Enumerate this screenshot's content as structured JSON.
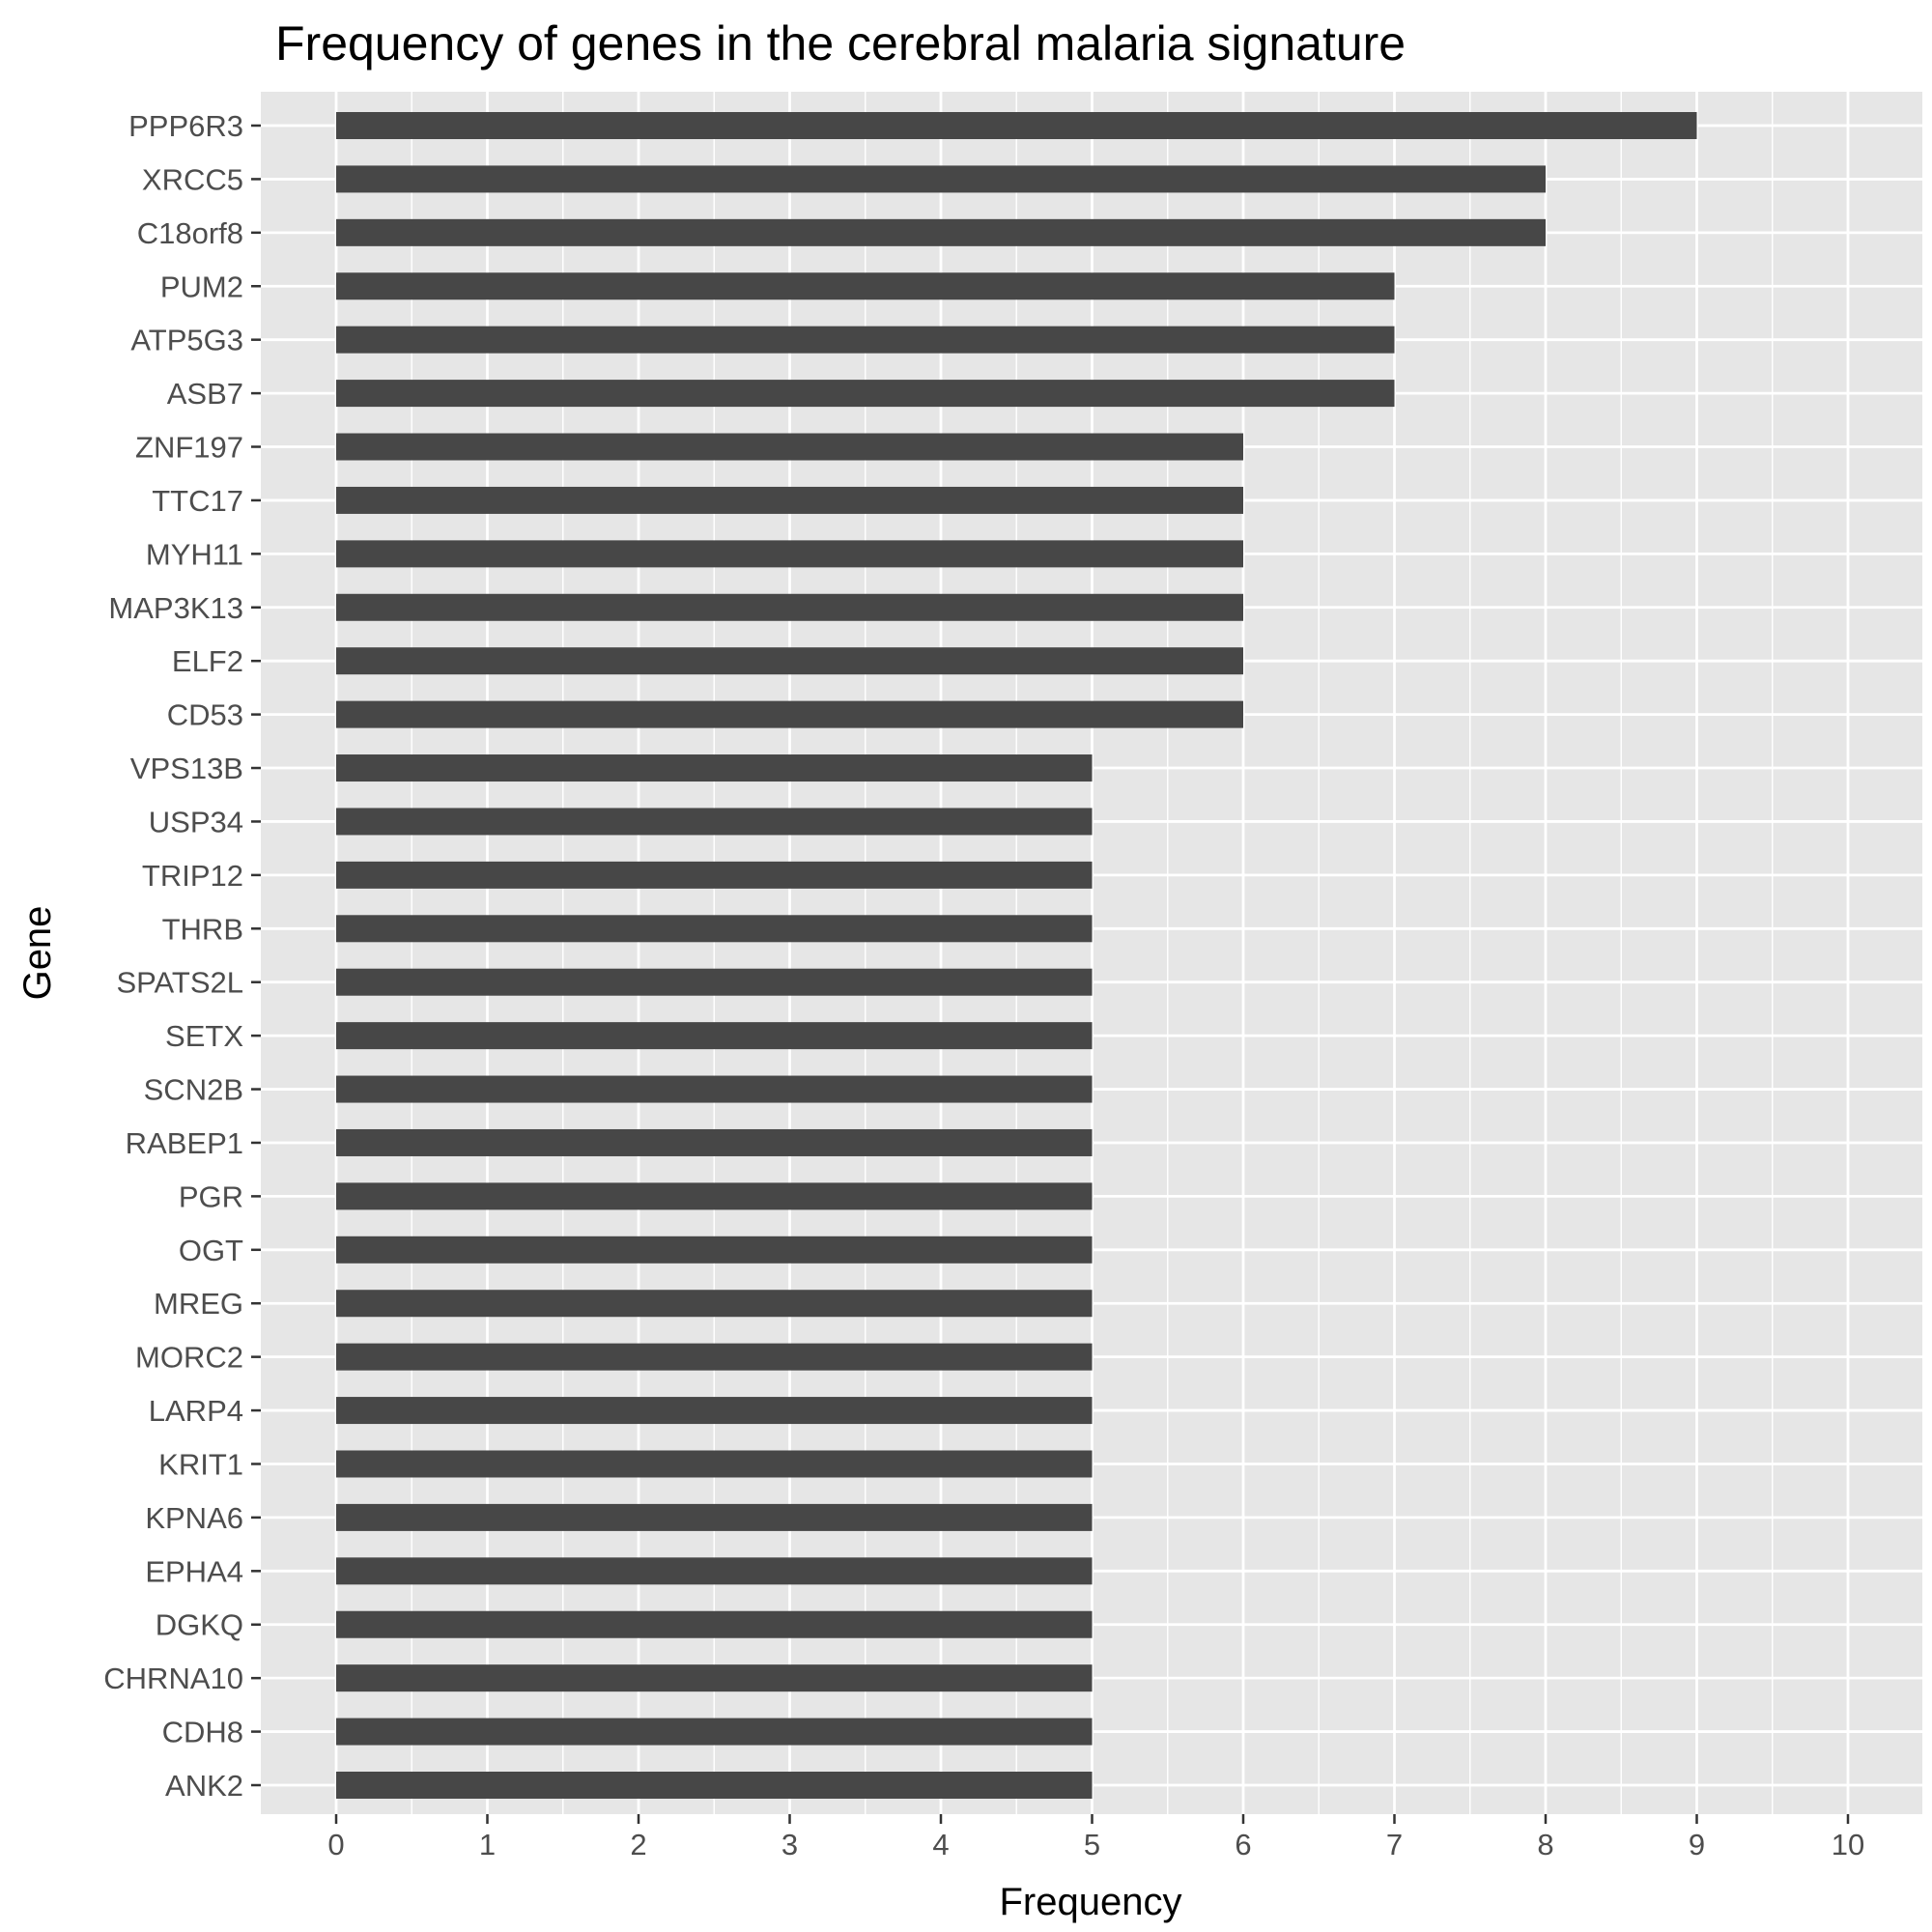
{
  "chart_data": {
    "type": "bar",
    "orientation": "horizontal",
    "title": "Frequency of genes in the cerebral malaria signature",
    "xlabel": "Frequency",
    "ylabel": "Gene",
    "xlim": [
      0,
      10
    ],
    "x_ticks": [
      0,
      1,
      2,
      3,
      4,
      5,
      6,
      7,
      8,
      9,
      10
    ],
    "grid": true,
    "legend": "none",
    "colors": {
      "bar": "#474747",
      "panel": "#e6e6e6",
      "grid": "#ffffff",
      "tick_label": "#4d4d4d"
    },
    "categories": [
      "PPP6R3",
      "XRCC5",
      "C18orf8",
      "PUM2",
      "ATP5G3",
      "ASB7",
      "ZNF197",
      "TTC17",
      "MYH11",
      "MAP3K13",
      "ELF2",
      "CD53",
      "VPS13B",
      "USP34",
      "TRIP12",
      "THRB",
      "SPATS2L",
      "SETX",
      "SCN2B",
      "RABEP1",
      "PGR",
      "OGT",
      "MREG",
      "MORC2",
      "LARP4",
      "KRIT1",
      "KPNA6",
      "EPHA4",
      "DGKQ",
      "CHRNA10",
      "CDH8",
      "ANK2"
    ],
    "values": [
      9,
      8,
      8,
      7,
      7,
      7,
      6,
      6,
      6,
      6,
      6,
      6,
      5,
      5,
      5,
      5,
      5,
      5,
      5,
      5,
      5,
      5,
      5,
      5,
      5,
      5,
      5,
      5,
      5,
      5,
      5,
      5
    ]
  }
}
